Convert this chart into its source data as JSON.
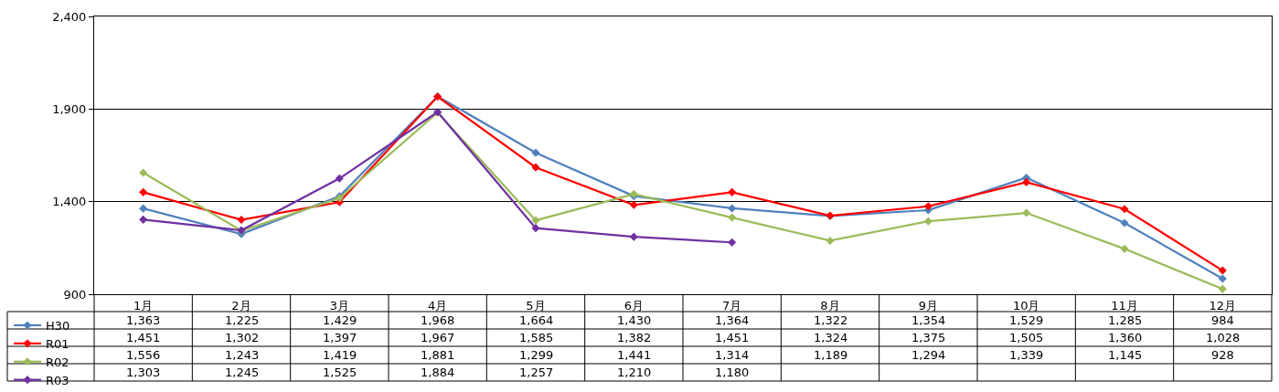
{
  "chart_data": {
    "type": "line",
    "categories": [
      "1月",
      "2月",
      "3月",
      "4月",
      "5月",
      "6月",
      "7月",
      "8月",
      "9月",
      "10月",
      "11月",
      "12月"
    ],
    "series": [
      {
        "name": "H30",
        "color": "#4f81bd",
        "values": [
          1363,
          1225,
          1429,
          1968,
          1664,
          1430,
          1364,
          1322,
          1354,
          1529,
          1285,
          984
        ],
        "value_labels": [
          "1,363",
          "1,225",
          "1,429",
          "1,968",
          "1,664",
          "1,430",
          "1,364",
          "1,322",
          "1,354",
          "1,529",
          "1,285",
          "984"
        ]
      },
      {
        "name": "R01",
        "color": "#ff0000",
        "values": [
          1451,
          1302,
          1397,
          1967,
          1585,
          1382,
          1451,
          1324,
          1375,
          1505,
          1360,
          1028
        ],
        "value_labels": [
          "1,451",
          "1,302",
          "1,397",
          "1,967",
          "1,585",
          "1,382",
          "1,451",
          "1,324",
          "1,375",
          "1,505",
          "1,360",
          "1,028"
        ]
      },
      {
        "name": "R02",
        "color": "#9bbb59",
        "values": [
          1556,
          1243,
          1419,
          1881,
          1299,
          1441,
          1314,
          1189,
          1294,
          1339,
          1145,
          928
        ],
        "value_labels": [
          "1,556",
          "1,243",
          "1,419",
          "1,881",
          "1,299",
          "1,441",
          "1,314",
          "1,189",
          "1,294",
          "1,339",
          "1,145",
          "928"
        ]
      },
      {
        "name": "R03",
        "color": "#7030a0",
        "values": [
          1303,
          1245,
          1525,
          1884,
          1257,
          1210,
          1180,
          null,
          null,
          null,
          null,
          null
        ],
        "value_labels": [
          "1,303",
          "1,245",
          "1,525",
          "1,884",
          "1,257",
          "1,210",
          "1,180",
          null,
          null,
          null,
          null,
          null
        ]
      }
    ],
    "ylim": [
      900,
      2400
    ],
    "yticks": [
      {
        "value": 900,
        "label": "900"
      },
      {
        "value": 1400,
        "label": "1,400"
      },
      {
        "value": 1900,
        "label": "1,900"
      },
      {
        "value": 2400,
        "label": "2,400"
      }
    ],
    "grid": "y",
    "legend": "bottom left",
    "marker": "diamond",
    "line_style": "solid"
  }
}
